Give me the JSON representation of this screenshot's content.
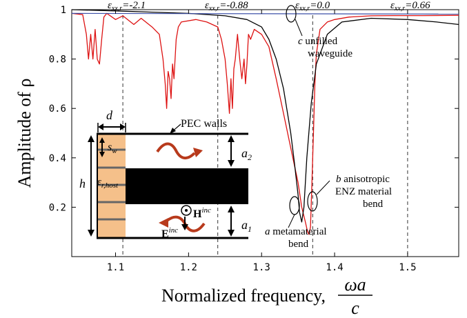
{
  "chart_data": {
    "type": "line",
    "ylabel": "Amplitude of ρ",
    "xlabel": "Normalized frequency,",
    "xlabel_fraction": {
      "numerator": "ωa",
      "denominator": "c"
    },
    "xlim": [
      1.04,
      1.57
    ],
    "ylim": [
      0.0,
      1.0
    ],
    "x_ticks": [
      "1.1",
      "1.2",
      "1.3",
      "1.4",
      "1.5"
    ],
    "y_ticks": [
      "0.2",
      "0.4",
      "0.6",
      "0.8",
      "1"
    ],
    "grid": false,
    "series": [
      {
        "color": "#dd1111",
        "x": [
          1.04,
          1.055,
          1.06,
          1.063,
          1.066,
          1.069,
          1.072,
          1.075,
          1.078,
          1.081,
          1.084,
          1.088,
          1.1,
          1.11,
          1.125,
          1.135,
          1.15,
          1.16,
          1.165,
          1.168,
          1.17,
          1.172,
          1.174,
          1.176,
          1.178,
          1.18,
          1.183,
          1.186,
          1.19,
          1.21,
          1.225,
          1.24,
          1.245,
          1.25,
          1.253,
          1.256,
          1.258,
          1.26,
          1.262,
          1.264,
          1.267,
          1.27,
          1.273,
          1.276,
          1.278,
          1.28,
          1.282,
          1.285,
          1.29,
          1.3,
          1.31,
          1.32,
          1.33,
          1.34,
          1.35,
          1.355,
          1.36,
          1.363,
          1.365,
          1.367,
          1.369,
          1.371,
          1.373,
          1.375,
          1.38,
          1.39,
          1.4,
          1.42,
          1.45,
          1.48,
          1.52,
          1.57
        ],
        "y": [
          0.985,
          0.98,
          0.9,
          0.8,
          0.9,
          0.8,
          0.92,
          0.8,
          0.78,
          0.88,
          0.97,
          0.985,
          0.96,
          0.975,
          0.94,
          0.965,
          0.93,
          0.9,
          0.8,
          0.7,
          0.6,
          0.75,
          0.72,
          0.64,
          0.78,
          0.72,
          0.88,
          0.93,
          0.95,
          0.96,
          0.95,
          0.93,
          0.88,
          0.8,
          0.7,
          0.58,
          0.72,
          0.6,
          0.76,
          0.8,
          0.9,
          0.8,
          0.72,
          0.8,
          0.7,
          0.78,
          0.9,
          0.88,
          0.92,
          0.9,
          0.85,
          0.72,
          0.58,
          0.44,
          0.3,
          0.2,
          0.14,
          0.1,
          0.09,
          0.12,
          0.3,
          0.5,
          0.7,
          0.82,
          0.92,
          0.95,
          0.96,
          0.97,
          0.975,
          0.976,
          0.976,
          0.977
        ]
      },
      {
        "color": "#000000",
        "x": [
          1.04,
          1.1,
          1.15,
          1.2,
          1.25,
          1.28,
          1.3,
          1.31,
          1.32,
          1.33,
          1.34,
          1.345,
          1.35,
          1.352,
          1.355,
          1.358,
          1.362,
          1.368,
          1.375,
          1.39,
          1.41,
          1.45,
          1.5,
          1.54,
          1.57
        ],
        "y": [
          1.0,
          0.995,
          0.99,
          0.985,
          0.975,
          0.96,
          0.93,
          0.88,
          0.8,
          0.68,
          0.5,
          0.38,
          0.25,
          0.18,
          0.14,
          0.2,
          0.4,
          0.62,
          0.78,
          0.9,
          0.95,
          0.965,
          0.96,
          0.95,
          0.94
        ]
      },
      {
        "color": "#3b4fa8",
        "x": [
          1.04,
          1.57
        ],
        "y": [
          0.985,
          0.982
        ]
      }
    ],
    "dashed_lines": [
      {
        "x": 1.11,
        "label": "ε",
        "label_sub": "xx,r",
        "label_value": "=-2.1"
      },
      {
        "x": 1.24,
        "label": "ε",
        "label_sub": "xx,r",
        "label_value": "=-0.88"
      },
      {
        "x": 1.37,
        "label": "ε",
        "label_sub": "xx,r",
        "label_value": "=0.0"
      },
      {
        "x": 1.5,
        "label": "ε",
        "label_sub": "xx,r",
        "label_value": "=0.66"
      }
    ],
    "annotations": {
      "c": {
        "letter": "c",
        "line1": "unfilled",
        "line2": "waveguide"
      },
      "b": {
        "letter": "b",
        "line1": "anisotropic",
        "line2": "ENZ material",
        "line3": "bend"
      },
      "a": {
        "letter": "a",
        "line1": "metamaterial",
        "line2": "bend"
      }
    },
    "inset": {
      "pec_label": "PEC walls",
      "d": "d",
      "s": "s",
      "s_sub": "w",
      "h": "h",
      "eps": "ε",
      "eps_sub": "r,host",
      "a2": "a",
      "a2_sub": "2",
      "a1": "a",
      "a1_sub": "1",
      "H": "H",
      "H_sup": "inc",
      "E": "E",
      "E_sup": "inc",
      "slab_color": "#f5c08a",
      "wave_color": "#b83a1c"
    }
  }
}
